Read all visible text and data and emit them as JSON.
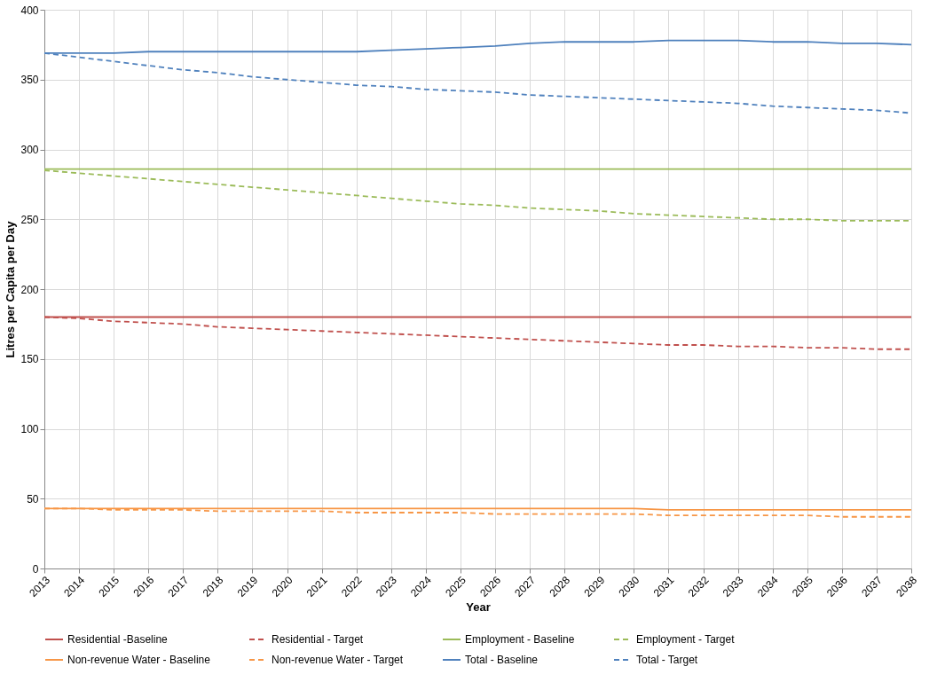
{
  "chart_data": {
    "type": "line",
    "xlabel": "Year",
    "ylabel": "Litres per Capita per Day",
    "categories": [
      "2013",
      "2014",
      "2015",
      "2016",
      "2017",
      "2018",
      "2019",
      "2020",
      "2021",
      "2022",
      "2023",
      "2024",
      "2025",
      "2026",
      "2027",
      "2028",
      "2029",
      "2030",
      "2031",
      "2032",
      "2033",
      "2034",
      "2035",
      "2036",
      "2037",
      "2038"
    ],
    "series": [
      {
        "name": "Residential -Baseline",
        "color": "#c0504d",
        "line_style": "solid",
        "values": [
          180,
          180,
          180,
          180,
          180,
          180,
          180,
          180,
          180,
          180,
          180,
          180,
          180,
          180,
          180,
          180,
          180,
          180,
          180,
          180,
          180,
          180,
          180,
          180,
          180,
          180
        ]
      },
      {
        "name": "Residential - Target",
        "color": "#c0504d",
        "line_style": "dashed",
        "values": [
          180,
          179,
          177,
          176,
          175,
          173,
          172,
          171,
          170,
          169,
          168,
          167,
          166,
          165,
          164,
          163,
          162,
          161,
          160,
          160,
          159,
          159,
          158,
          158,
          157,
          157
        ]
      },
      {
        "name": "Employment - Baseline",
        "color": "#9bbb59",
        "line_style": "solid",
        "values": [
          286,
          286,
          286,
          286,
          286,
          286,
          286,
          286,
          286,
          286,
          286,
          286,
          286,
          286,
          286,
          286,
          286,
          286,
          286,
          286,
          286,
          286,
          286,
          286,
          286,
          286
        ]
      },
      {
        "name": "Employment - Target",
        "color": "#9bbb59",
        "line_style": "dashed",
        "values": [
          285,
          283,
          281,
          279,
          277,
          275,
          273,
          271,
          269,
          267,
          265,
          263,
          261,
          260,
          258,
          257,
          256,
          254,
          253,
          252,
          251,
          250,
          250,
          249,
          249,
          249
        ]
      },
      {
        "name": "Non-revenue Water - Baseline",
        "color": "#f79646",
        "line_style": "solid",
        "values": [
          43,
          43,
          43,
          43,
          43,
          43,
          43,
          43,
          43,
          43,
          43,
          43,
          43,
          43,
          43,
          43,
          43,
          43,
          42,
          42,
          42,
          42,
          42,
          42,
          42,
          42
        ]
      },
      {
        "name": "Non-revenue Water - Target",
        "color": "#f79646",
        "line_style": "dashed",
        "values": [
          43,
          43,
          42,
          42,
          42,
          41,
          41,
          41,
          41,
          40,
          40,
          40,
          40,
          39,
          39,
          39,
          39,
          39,
          38,
          38,
          38,
          38,
          38,
          37,
          37,
          37
        ]
      },
      {
        "name": "Total - Baseline",
        "color": "#4f81bd",
        "line_style": "solid",
        "values": [
          369,
          369,
          369,
          370,
          370,
          370,
          370,
          370,
          370,
          370,
          371,
          372,
          373,
          374,
          376,
          377,
          377,
          377,
          378,
          378,
          378,
          377,
          377,
          376,
          376,
          375
        ]
      },
      {
        "name": "Total  - Target",
        "color": "#4f81bd",
        "line_style": "dashed",
        "values": [
          369,
          366,
          363,
          360,
          357,
          355,
          352,
          350,
          348,
          346,
          345,
          343,
          342,
          341,
          339,
          338,
          337,
          336,
          335,
          334,
          333,
          331,
          330,
          329,
          328,
          326
        ]
      }
    ],
    "ylim": [
      0,
      400
    ],
    "yticks": [
      0,
      50,
      100,
      150,
      200,
      250,
      300,
      350,
      400
    ],
    "grid": true,
    "legend": "bottom"
  }
}
